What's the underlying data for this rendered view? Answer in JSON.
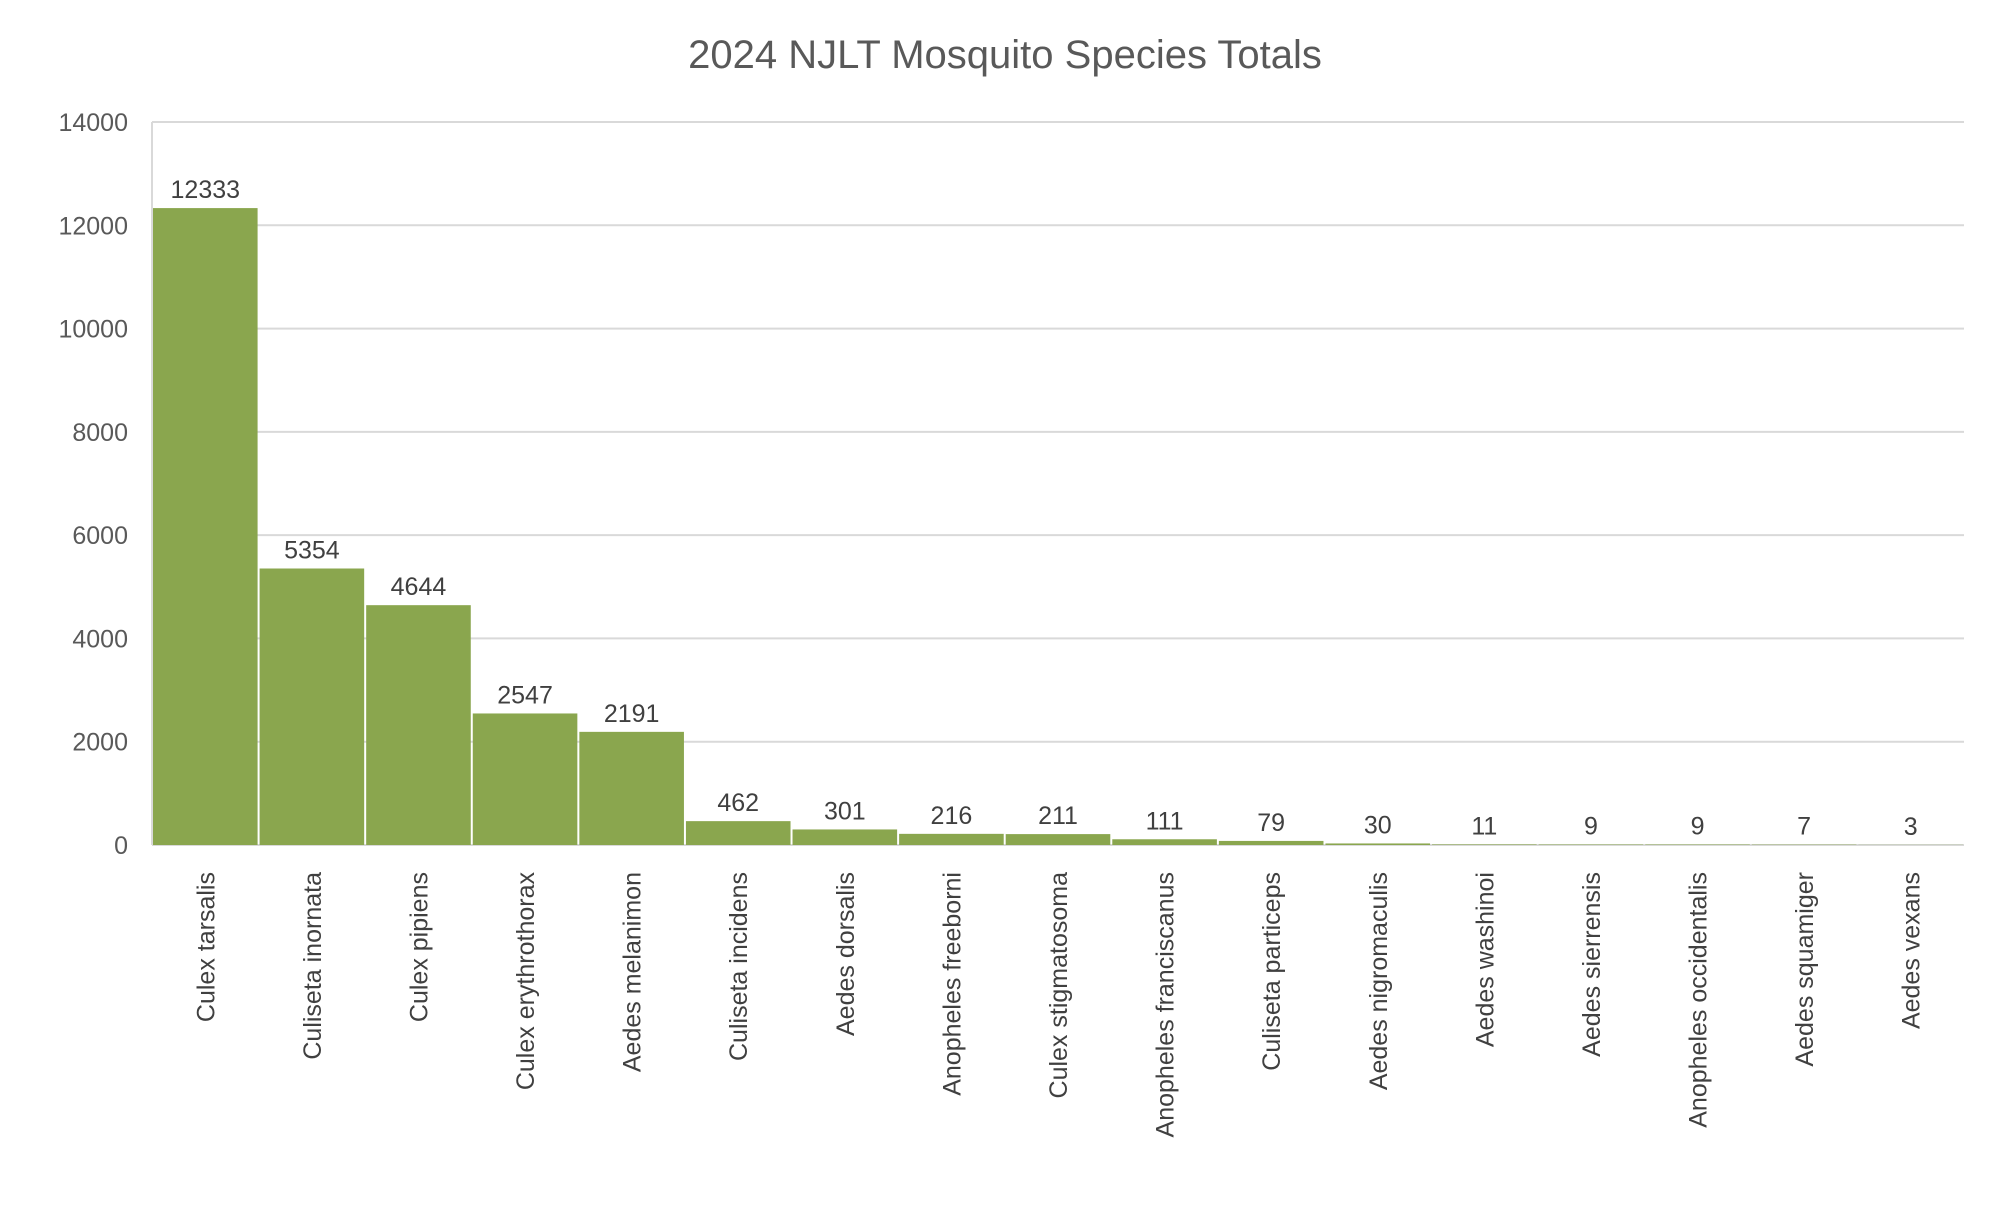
{
  "chart_data": {
    "type": "bar",
    "title": "2024 NJLT Mosquito Species Totals",
    "xlabel": "",
    "ylabel": "",
    "ylim": [
      0,
      14000
    ],
    "yticks": [
      0,
      2000,
      4000,
      6000,
      8000,
      10000,
      12000,
      14000
    ],
    "grid": true,
    "legend": "none",
    "bar_color": "#8aa64e",
    "categories": [
      "Culex tarsalis",
      "Culiseta inornata",
      "Culex pipiens",
      "Culex erythrothorax",
      "Aedes melanimon",
      "Culiseta incidens",
      "Aedes dorsalis",
      "Anopheles freeborni",
      "Culex stigmatosoma",
      "Anopheles franciscanus",
      "Culiseta particeps",
      "Aedes nigromaculis",
      "Aedes washinoi",
      "Aedes sierrensis",
      "Anopheles occidentalis",
      "Aedes squamiger",
      "Aedes vexans"
    ],
    "values": [
      12333,
      5354,
      4644,
      2547,
      2191,
      462,
      301,
      216,
      211,
      111,
      79,
      30,
      11,
      9,
      9,
      7,
      3
    ]
  }
}
